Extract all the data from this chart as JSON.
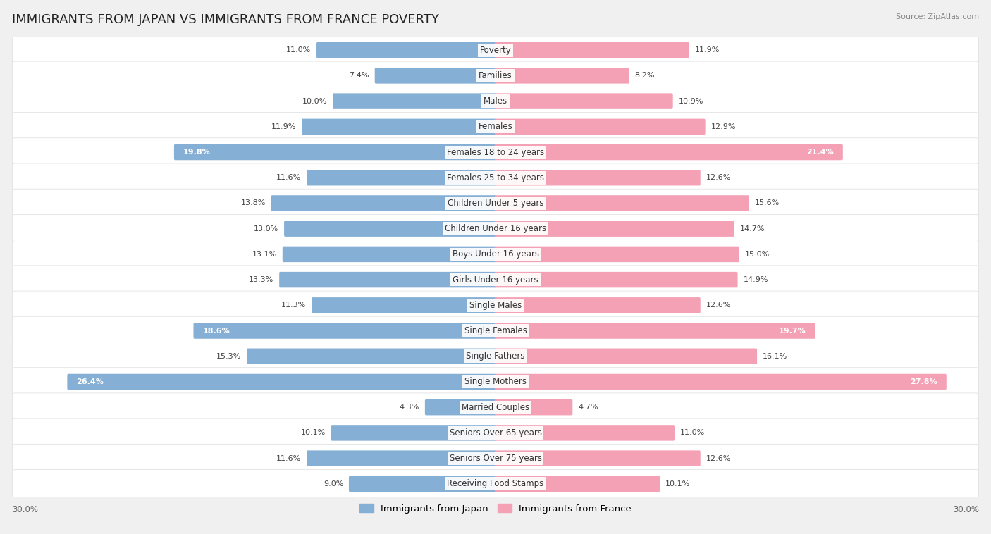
{
  "title": "IMMIGRANTS FROM JAPAN VS IMMIGRANTS FROM FRANCE POVERTY",
  "source": "Source: ZipAtlas.com",
  "categories": [
    "Poverty",
    "Families",
    "Males",
    "Females",
    "Females 18 to 24 years",
    "Females 25 to 34 years",
    "Children Under 5 years",
    "Children Under 16 years",
    "Boys Under 16 years",
    "Girls Under 16 years",
    "Single Males",
    "Single Females",
    "Single Fathers",
    "Single Mothers",
    "Married Couples",
    "Seniors Over 65 years",
    "Seniors Over 75 years",
    "Receiving Food Stamps"
  ],
  "japan_values": [
    11.0,
    7.4,
    10.0,
    11.9,
    19.8,
    11.6,
    13.8,
    13.0,
    13.1,
    13.3,
    11.3,
    18.6,
    15.3,
    26.4,
    4.3,
    10.1,
    11.6,
    9.0
  ],
  "france_values": [
    11.9,
    8.2,
    10.9,
    12.9,
    21.4,
    12.6,
    15.6,
    14.7,
    15.0,
    14.9,
    12.6,
    19.7,
    16.1,
    27.8,
    4.7,
    11.0,
    12.6,
    10.1
  ],
  "japan_color": "#85afd4",
  "france_color": "#f4a0b5",
  "japan_label": "Immigrants from Japan",
  "france_label": "Immigrants from France",
  "axis_max": 30.0,
  "background_color": "#f0f0f0",
  "bar_background": "#ffffff",
  "title_fontsize": 13,
  "label_fontsize": 8.5,
  "value_fontsize": 8.0
}
